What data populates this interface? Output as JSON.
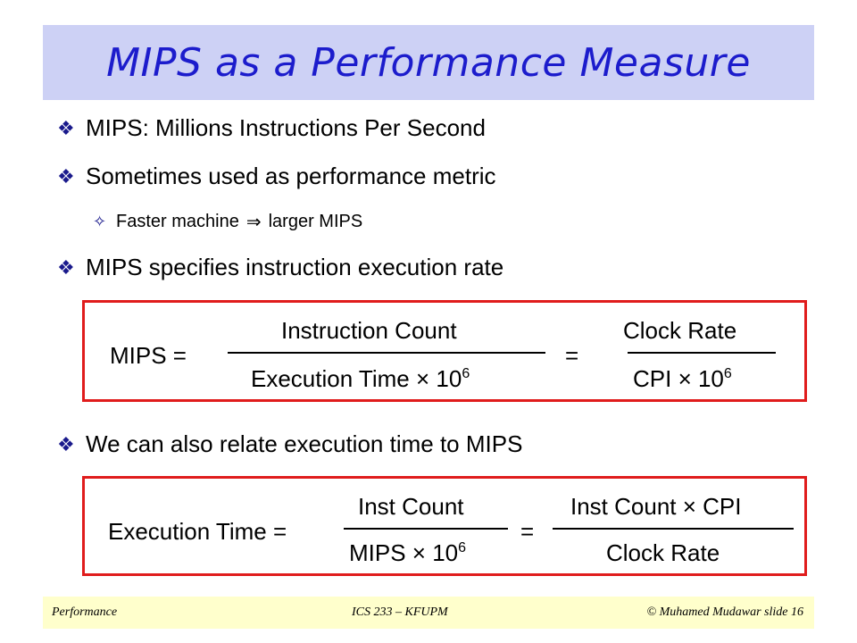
{
  "title": "MIPS as a Performance Measure",
  "bullets": [
    "MIPS: Millions Instructions Per Second",
    "Sometimes used as performance metric",
    "MIPS specifies instruction execution rate",
    "We can also relate execution time to MIPS"
  ],
  "sub_bullet": {
    "prefix": "Faster machine",
    "suffix": "larger MIPS"
  },
  "formula1": {
    "lhs": "MIPS  =",
    "num1": "Instruction Count",
    "den1": "Execution Time × 10",
    "den1_exp": "6",
    "equals": "=",
    "num2": "Clock Rate",
    "den2": "CPI × 10",
    "den2_exp": "6"
  },
  "formula2": {
    "lhs": "Execution Time =",
    "num1": "Inst Count",
    "den1": "MIPS × 10",
    "den1_exp": "6",
    "equals": "=",
    "num2": "Inst Count × CPI",
    "den2": "Clock Rate"
  },
  "footer": {
    "left": "Performance",
    "center": "ICS 233 – KFUPM",
    "right": "© Muhamed Mudawar  slide 16"
  },
  "colors": {
    "title_bg": "#cdd1f5",
    "title_text": "#1c1ccc",
    "box_border": "#e01c1c",
    "footer_bg": "#ffffcc"
  }
}
